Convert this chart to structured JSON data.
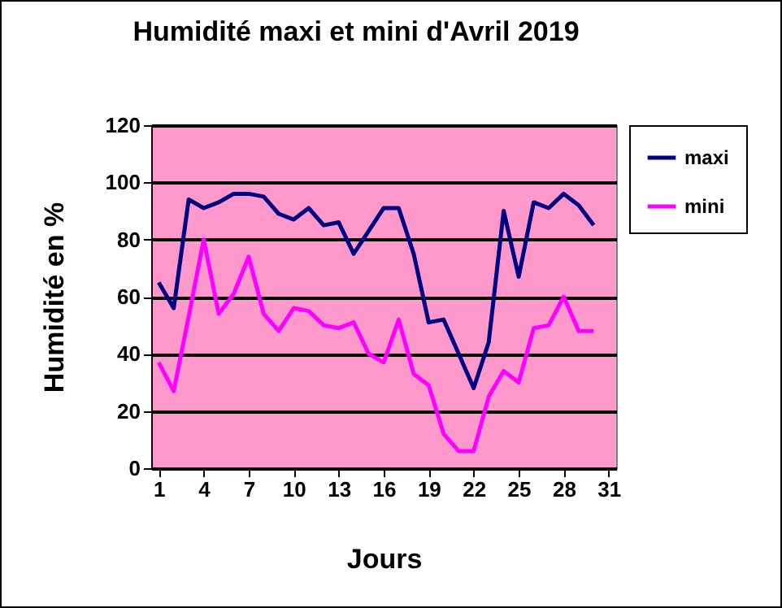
{
  "chart_data": {
    "type": "line",
    "title": "Humidité maxi et mini d'Avril 2019",
    "xlabel": "Jours",
    "ylabel": "Humidité en %",
    "x": [
      1,
      2,
      3,
      4,
      5,
      6,
      7,
      8,
      9,
      10,
      11,
      12,
      13,
      14,
      15,
      16,
      17,
      18,
      19,
      20,
      21,
      22,
      23,
      24,
      25,
      26,
      27,
      28,
      29,
      30
    ],
    "xlim": [
      0.5,
      31.5
    ],
    "xticks": [
      1,
      4,
      7,
      10,
      13,
      16,
      19,
      22,
      25,
      28,
      31
    ],
    "ylim": [
      0,
      120
    ],
    "yticks": [
      0,
      20,
      40,
      60,
      80,
      100,
      120
    ],
    "grid": "y",
    "legend": "right",
    "marker": "none",
    "line_style": "solid",
    "series": [
      {
        "name": "maxi",
        "color": "#000080",
        "values": [
          65,
          56,
          94,
          91,
          93,
          96,
          96,
          95,
          89,
          87,
          91,
          85,
          86,
          75,
          83,
          91,
          91,
          75,
          51,
          52,
          40,
          28,
          44,
          90,
          67,
          93,
          91,
          96,
          92,
          85
        ]
      },
      {
        "name": "mini",
        "color": "#ff00ff",
        "values": [
          37,
          27,
          53,
          80,
          54,
          61,
          74,
          54,
          48,
          56,
          55,
          50,
          49,
          51,
          40,
          37,
          52,
          33,
          29,
          12,
          6,
          6,
          25,
          34,
          30,
          49,
          50,
          60,
          48,
          48
        ]
      }
    ]
  }
}
